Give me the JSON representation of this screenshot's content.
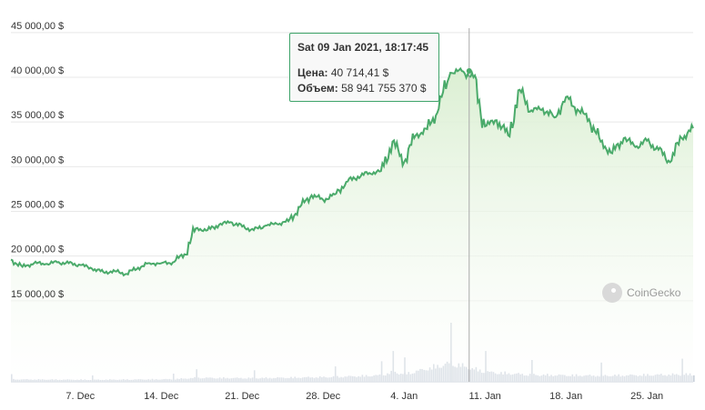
{
  "chart_data": {
    "type": "area",
    "title": "",
    "y_tick_labels": [
      "45 000,00 $",
      "40 000,00 $",
      "35 000,00 $",
      "30 000,00 $",
      "25 000,00 $",
      "20 000,00 $",
      "15 000,00 $"
    ],
    "y_ticks": [
      45000,
      40000,
      35000,
      30000,
      25000,
      20000,
      15000
    ],
    "ylim": [
      10000,
      46000
    ],
    "x_tick_labels": [
      "7. Dec",
      "14. Dec",
      "21. Dec",
      "28. Dec",
      "4. Jan",
      "11. Jan",
      "18. Jan",
      "25. Jan"
    ],
    "x_ticks": [
      "2020-12-07",
      "2020-12-14",
      "2020-12-21",
      "2020-12-28",
      "2021-01-04",
      "2021-01-11",
      "2021-01-18",
      "2021-01-25"
    ],
    "xlim": [
      "2020-12-01",
      "2021-01-29"
    ],
    "line_color": "#4aaa6a",
    "fill_color": "#e7f4df",
    "volume_color": "#c8d0da",
    "price_series": {
      "name": "Цена",
      "dates": [
        "2020-12-01",
        "2020-12-02",
        "2020-12-03",
        "2020-12-04",
        "2020-12-05",
        "2020-12-06",
        "2020-12-07",
        "2020-12-08",
        "2020-12-09",
        "2020-12-10",
        "2020-12-11",
        "2020-12-12",
        "2020-12-13",
        "2020-12-14",
        "2020-12-15",
        "2020-12-16",
        "2020-12-17",
        "2020-12-18",
        "2020-12-19",
        "2020-12-20",
        "2020-12-21",
        "2020-12-22",
        "2020-12-23",
        "2020-12-24",
        "2020-12-25",
        "2020-12-26",
        "2020-12-27",
        "2020-12-28",
        "2020-12-29",
        "2020-12-30",
        "2020-12-31",
        "2021-01-01",
        "2021-01-02",
        "2021-01-03",
        "2021-01-04",
        "2021-01-05",
        "2021-01-06",
        "2021-01-07",
        "2021-01-08",
        "2021-01-09",
        "2021-01-10",
        "2021-01-11",
        "2021-01-12",
        "2021-01-13",
        "2021-01-14",
        "2021-01-15",
        "2021-01-16",
        "2021-01-17",
        "2021-01-18",
        "2021-01-19",
        "2021-01-20",
        "2021-01-21",
        "2021-01-22",
        "2021-01-23",
        "2021-01-24",
        "2021-01-25",
        "2021-01-26",
        "2021-01-27",
        "2021-01-28",
        "2021-01-29"
      ],
      "values": [
        19600,
        18800,
        19200,
        19100,
        19300,
        19200,
        19000,
        18600,
        18200,
        18300,
        18000,
        18700,
        19200,
        19200,
        19300,
        20200,
        23100,
        22900,
        23500,
        23800,
        23300,
        22900,
        23400,
        23600,
        23900,
        25500,
        26800,
        26300,
        26900,
        28300,
        28900,
        29300,
        29500,
        32800,
        30500,
        33500,
        34200,
        36500,
        40500,
        40700,
        40000,
        34500,
        35200,
        33500,
        38600,
        36300,
        36500,
        35500,
        37800,
        36400,
        35300,
        32800,
        31500,
        33200,
        32200,
        32900,
        31900,
        30500,
        33200,
        34300
      ]
    },
    "volume_series": {
      "name": "Объем",
      "dates": [
        "2020-12-01",
        "2020-12-08",
        "2020-12-15",
        "2020-12-17",
        "2020-12-22",
        "2020-12-29",
        "2021-01-02",
        "2021-01-03",
        "2021-01-04",
        "2021-01-08",
        "2021-01-11",
        "2021-01-15",
        "2021-01-21",
        "2021-01-28"
      ],
      "values": [
        30000000000.0,
        25000000000.0,
        32000000000.0,
        49000000000.0,
        45000000000.0,
        60000000000.0,
        80000000000.0,
        120000000000.0,
        95000000000.0,
        230000000000.0,
        120000000000.0,
        85000000000.0,
        75000000000.0,
        90000000000.0
      ]
    },
    "tooltip": {
      "date": "Sat 09 Jan 2021, 18:17:45",
      "price_label": "Цена:",
      "price_value": "40 714,41 $",
      "volume_label": "Объем:",
      "volume_value": "58 941 755 370 $",
      "crosshair_date": "2021-01-09"
    },
    "credit": "CoinGecko"
  }
}
